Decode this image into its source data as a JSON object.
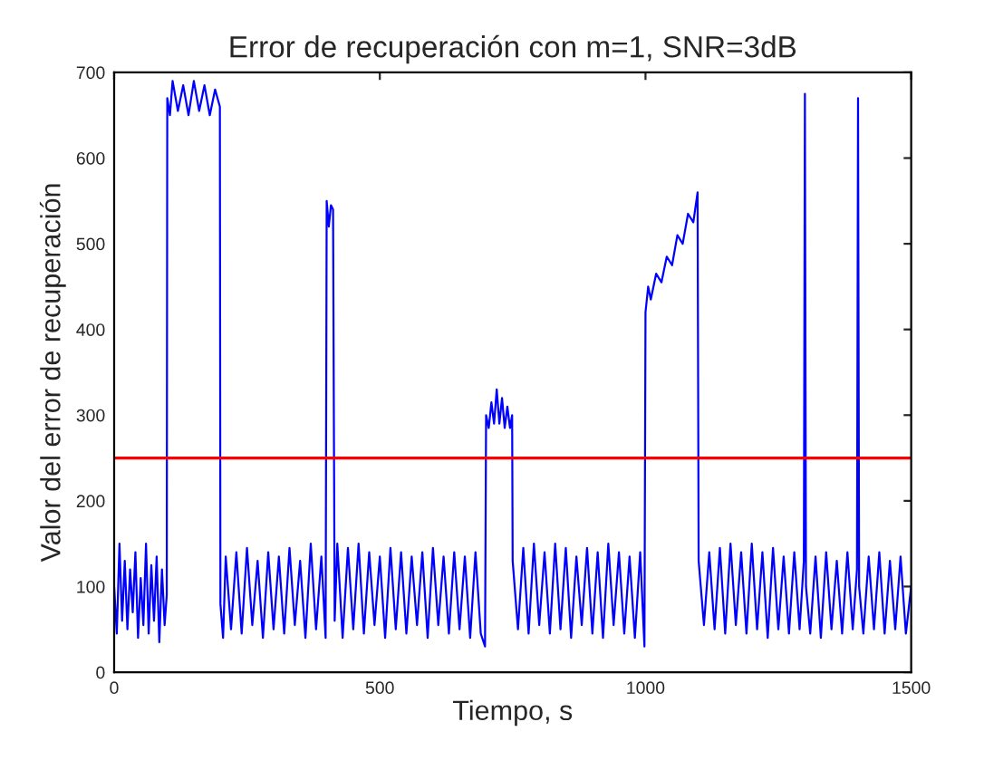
{
  "chart_data": {
    "type": "line",
    "title": "Error de recuperación con m=1, SNR=3dB",
    "xlabel": "Tiempo, s",
    "ylabel": "Valor del error de recuperación",
    "xlim": [
      0,
      1500
    ],
    "xticks": [
      0,
      500,
      1000,
      1500
    ],
    "ylim": [
      0,
      700
    ],
    "yticks": [
      0,
      100,
      200,
      300,
      400,
      500,
      600,
      700
    ],
    "grid": false,
    "legend": false,
    "marker": "none",
    "line_style": "solid",
    "ref_lines": [
      {
        "axis": "y",
        "value": 250,
        "color": "#ff0000",
        "line_style": "solid"
      }
    ],
    "series": [
      {
        "color": "#0000ff",
        "x": [
          0,
          5,
          10,
          15,
          20,
          25,
          30,
          35,
          40,
          45,
          50,
          55,
          60,
          65,
          70,
          75,
          80,
          85,
          90,
          95,
          99,
          100,
          105,
          110,
          120,
          130,
          140,
          150,
          160,
          170,
          180,
          190,
          199,
          200,
          205,
          210,
          220,
          230,
          240,
          250,
          260,
          270,
          280,
          290,
          300,
          310,
          320,
          330,
          340,
          350,
          360,
          370,
          380,
          390,
          398,
          400,
          404,
          408,
          412,
          415,
          420,
          430,
          440,
          450,
          460,
          470,
          480,
          490,
          500,
          510,
          520,
          530,
          540,
          550,
          560,
          570,
          580,
          590,
          600,
          610,
          620,
          630,
          640,
          650,
          660,
          670,
          680,
          690,
          698,
          700,
          705,
          710,
          715,
          720,
          725,
          730,
          735,
          740,
          745,
          749,
          750,
          760,
          770,
          780,
          790,
          800,
          810,
          820,
          830,
          840,
          850,
          860,
          870,
          880,
          890,
          900,
          910,
          920,
          930,
          940,
          950,
          960,
          970,
          980,
          990,
          998,
          1000,
          1005,
          1010,
          1020,
          1030,
          1040,
          1050,
          1060,
          1070,
          1080,
          1090,
          1098,
          1100,
          1110,
          1120,
          1130,
          1140,
          1150,
          1160,
          1170,
          1180,
          1190,
          1200,
          1210,
          1220,
          1230,
          1240,
          1250,
          1260,
          1270,
          1280,
          1290,
          1298,
          1300,
          1302,
          1310,
          1320,
          1330,
          1340,
          1350,
          1360,
          1370,
          1380,
          1390,
          1398,
          1400,
          1402,
          1410,
          1420,
          1430,
          1440,
          1450,
          1460,
          1470,
          1480,
          1490,
          1500
        ],
        "values": [
          100,
          45,
          150,
          60,
          130,
          50,
          120,
          70,
          140,
          40,
          110,
          55,
          150,
          45,
          125,
          60,
          135,
          35,
          120,
          55,
          90,
          670,
          650,
          690,
          655,
          685,
          650,
          690,
          655,
          685,
          650,
          680,
          660,
          80,
          40,
          135,
          50,
          140,
          45,
          145,
          55,
          130,
          40,
          140,
          50,
          135,
          45,
          145,
          55,
          130,
          40,
          150,
          50,
          135,
          40,
          550,
          520,
          545,
          540,
          60,
          150,
          40,
          145,
          50,
          150,
          45,
          140,
          55,
          135,
          40,
          145,
          50,
          140,
          45,
          135,
          55,
          140,
          40,
          145,
          55,
          135,
          45,
          140,
          50,
          135,
          40,
          140,
          45,
          30,
          300,
          285,
          315,
          290,
          330,
          290,
          320,
          285,
          310,
          285,
          300,
          130,
          50,
          145,
          45,
          150,
          55,
          140,
          45,
          150,
          50,
          145,
          40,
          135,
          55,
          145,
          45,
          140,
          40,
          150,
          55,
          140,
          45,
          135,
          40,
          140,
          30,
          420,
          450,
          435,
          465,
          455,
          485,
          475,
          510,
          500,
          535,
          525,
          560,
          130,
          55,
          140,
          50,
          145,
          45,
          150,
          55,
          140,
          45,
          150,
          50,
          140,
          40,
          145,
          50,
          135,
          45,
          140,
          50,
          130,
          675,
          100,
          45,
          135,
          40,
          140,
          50,
          130,
          45,
          140,
          50,
          120,
          670,
          100,
          45,
          135,
          50,
          140,
          45,
          130,
          50,
          135,
          45,
          100
        ]
      }
    ]
  }
}
